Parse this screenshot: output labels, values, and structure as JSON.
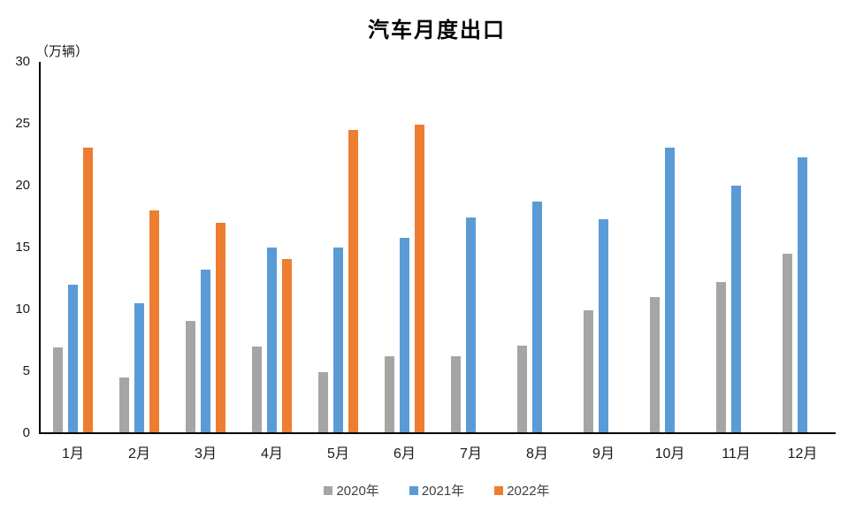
{
  "title": "汽车月度出口",
  "axis_unit_label": "（万辆）",
  "chart_data": {
    "type": "bar",
    "title": "汽车月度出口",
    "ylabel": "（万辆）",
    "xlabel": "",
    "categories": [
      "1月",
      "2月",
      "3月",
      "4月",
      "5月",
      "6月",
      "7月",
      "8月",
      "9月",
      "10月",
      "11月",
      "12月"
    ],
    "series": [
      {
        "name": "2020年",
        "color": "#A5A5A5",
        "values": [
          6.9,
          4.5,
          9.1,
          7.0,
          4.9,
          6.2,
          6.2,
          7.1,
          9.9,
          11.0,
          12.2,
          14.5
        ]
      },
      {
        "name": "2021年",
        "color": "#5B9BD5",
        "values": [
          12.0,
          10.5,
          13.2,
          15.0,
          15.0,
          15.8,
          17.4,
          18.7,
          17.3,
          23.1,
          20.0,
          22.3
        ]
      },
      {
        "name": "2022年",
        "color": "#ED7D31",
        "values": [
          23.1,
          18.0,
          17.0,
          14.1,
          24.5,
          24.9,
          null,
          null,
          null,
          null,
          null,
          null
        ]
      }
    ],
    "ylim": [
      0,
      30
    ],
    "yticks": [
      0,
      5,
      10,
      15,
      20,
      25,
      30
    ],
    "grid": false,
    "legend_position": "bottom"
  }
}
